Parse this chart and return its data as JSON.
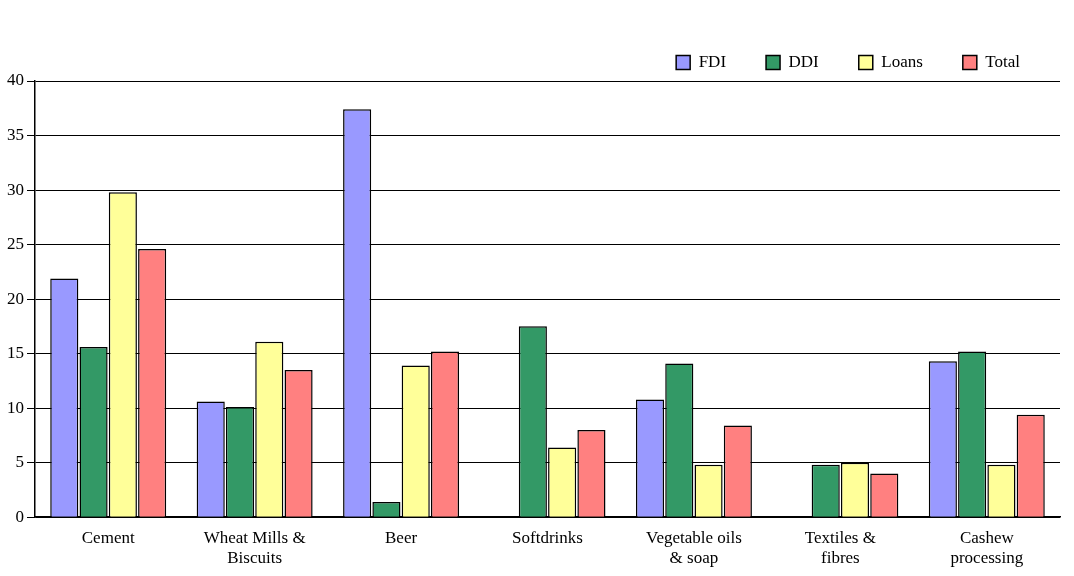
{
  "chart_data": {
    "type": "bar",
    "categories": [
      "Cement",
      "Wheat Mills & Biscuits",
      "Beer",
      "Softdrinks",
      "Vegetable oils & soap",
      "Textiles & fibres",
      "Cashew processing"
    ],
    "series": [
      {
        "name": "FDI",
        "color": "#9999ff",
        "values": [
          21.9,
          10.6,
          37.4,
          0,
          10.8,
          0,
          14.3
        ]
      },
      {
        "name": "DDI",
        "color": "#339966",
        "values": [
          15.6,
          10.1,
          1.4,
          17.5,
          14.1,
          4.8,
          15.2
        ]
      },
      {
        "name": "Loans",
        "color": "#ffff99",
        "values": [
          29.8,
          16.1,
          13.9,
          6.4,
          4.8,
          5.0,
          4.8
        ]
      },
      {
        "name": "Total",
        "color": "#ff8080",
        "values": [
          24.6,
          13.5,
          15.2,
          8.0,
          8.4,
          4.0,
          9.4
        ]
      }
    ],
    "ylim": [
      0,
      40
    ],
    "yticks": [
      0,
      5,
      10,
      15,
      20,
      25,
      30,
      35,
      40
    ],
    "grid": "y",
    "legend": "top right"
  }
}
